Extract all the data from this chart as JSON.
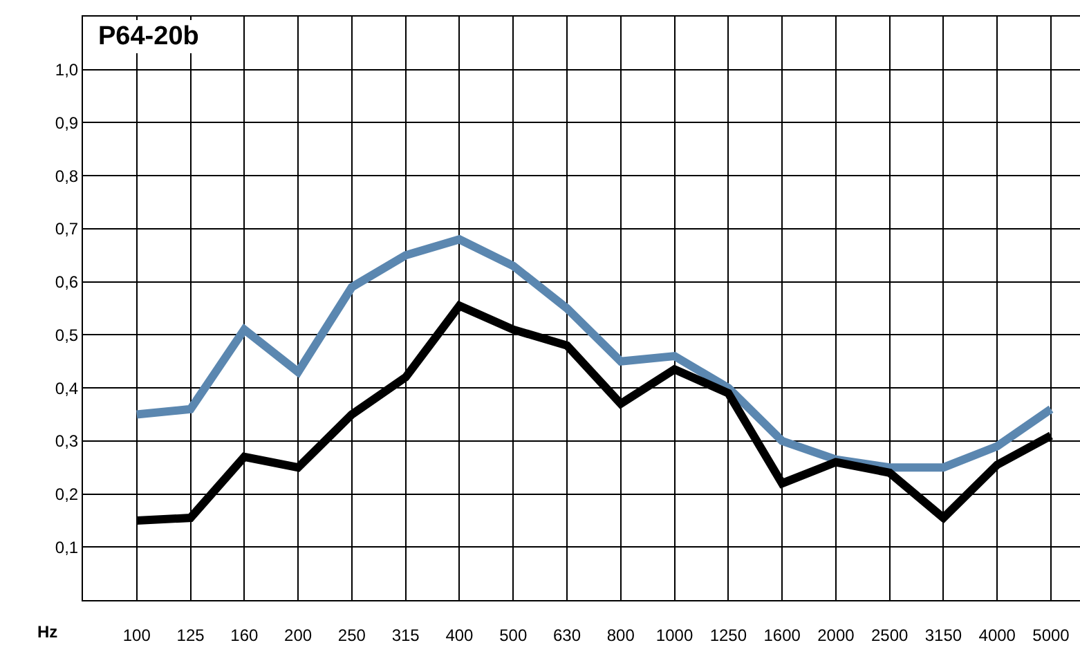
{
  "chart_data": {
    "type": "line",
    "title": "P64-20b",
    "xlabel": "Hz",
    "categories": [
      "100",
      "125",
      "160",
      "200",
      "250",
      "315",
      "400",
      "500",
      "630",
      "800",
      "1000",
      "1250",
      "1600",
      "2000",
      "2500",
      "3150",
      "4000",
      "5000"
    ],
    "series": [
      {
        "color": "#5b87b0",
        "values": [
          0.35,
          0.36,
          0.51,
          0.43,
          0.59,
          0.65,
          0.68,
          0.63,
          0.55,
          0.45,
          0.46,
          0.4,
          0.3,
          0.265,
          0.25,
          0.25,
          0.29,
          0.36
        ]
      },
      {
        "color": "#000000",
        "values": [
          0.15,
          0.155,
          0.27,
          0.25,
          0.35,
          0.42,
          0.555,
          0.51,
          0.48,
          0.37,
          0.435,
          0.39,
          0.22,
          0.26,
          0.24,
          0.155,
          0.255,
          0.31
        ]
      }
    ],
    "ylim": [
      0,
      1.1
    ],
    "yticks": [
      {
        "value": 0.1,
        "label": "0,1"
      },
      {
        "value": 0.2,
        "label": "0,2"
      },
      {
        "value": 0.3,
        "label": "0,3"
      },
      {
        "value": 0.4,
        "label": "0,4"
      },
      {
        "value": 0.5,
        "label": "0,5"
      },
      {
        "value": 0.6,
        "label": "0,6"
      },
      {
        "value": 0.7,
        "label": "0,7"
      },
      {
        "value": 0.8,
        "label": "0,8"
      },
      {
        "value": 0.9,
        "label": "0,9"
      },
      {
        "value": 1.0,
        "label": "1,0"
      }
    ],
    "grid": true,
    "marker": "none",
    "line_style": "solid"
  }
}
